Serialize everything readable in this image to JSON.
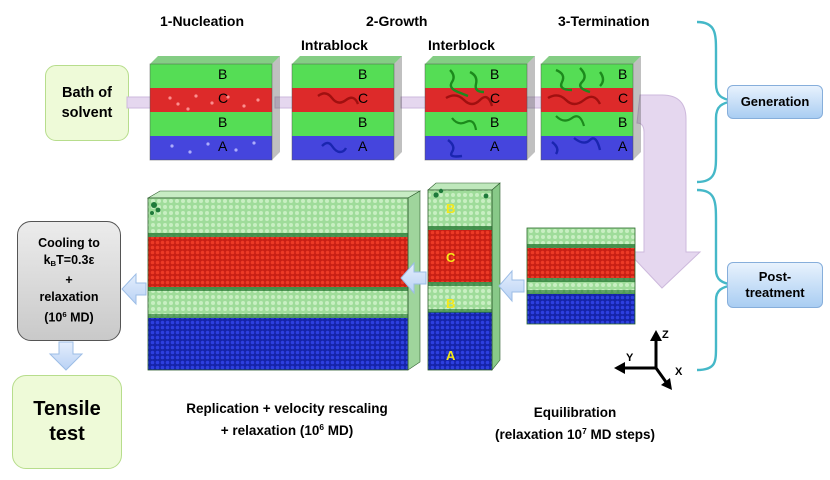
{
  "stages": {
    "nucleation": "1-Nucleation",
    "growth": "2-Growth",
    "termination": "3-Termination"
  },
  "substages": {
    "intrablock": "Intrablock",
    "interblock": "Interblock"
  },
  "bath": {
    "line1": "Bath of",
    "line2": "solvent"
  },
  "layer_labels": {
    "a": "A",
    "b": "B",
    "c": "C"
  },
  "side_tags": {
    "generation": "Generation",
    "post_treatment_line1": "Post-",
    "post_treatment_line2": "treatment"
  },
  "cooling": {
    "line1": "Cooling to",
    "k": "k",
    "k_sub": "B",
    "t_eq": "T=0.3ε",
    "plus": "+",
    "relaxation": "relaxation",
    "md_open": "(10",
    "md_exp": "6",
    "md_close": " MD)"
  },
  "tensile": {
    "line1": "Tensile",
    "line2": "test"
  },
  "replication": {
    "line1": "Replication + velocity rescaling",
    "line2_prefix": "+ relaxation (10",
    "line2_exp": "6",
    "line2_suffix": " MD)"
  },
  "equilibration": {
    "line1": "Equilibration",
    "line2_prefix": "(relaxation 10",
    "line2_exp": "7",
    "line2_suffix": "  MD steps)"
  },
  "axes": {
    "z": "Z",
    "y": "Y",
    "x": "X"
  },
  "colors": {
    "block_a": "#3f3fd9",
    "block_b": "#55dd55",
    "block_c": "#dd2a2a",
    "bracket": "#45b8c8",
    "arrow_fill": "#e5d7ef",
    "arrow_blue": "#cfe1fa"
  }
}
